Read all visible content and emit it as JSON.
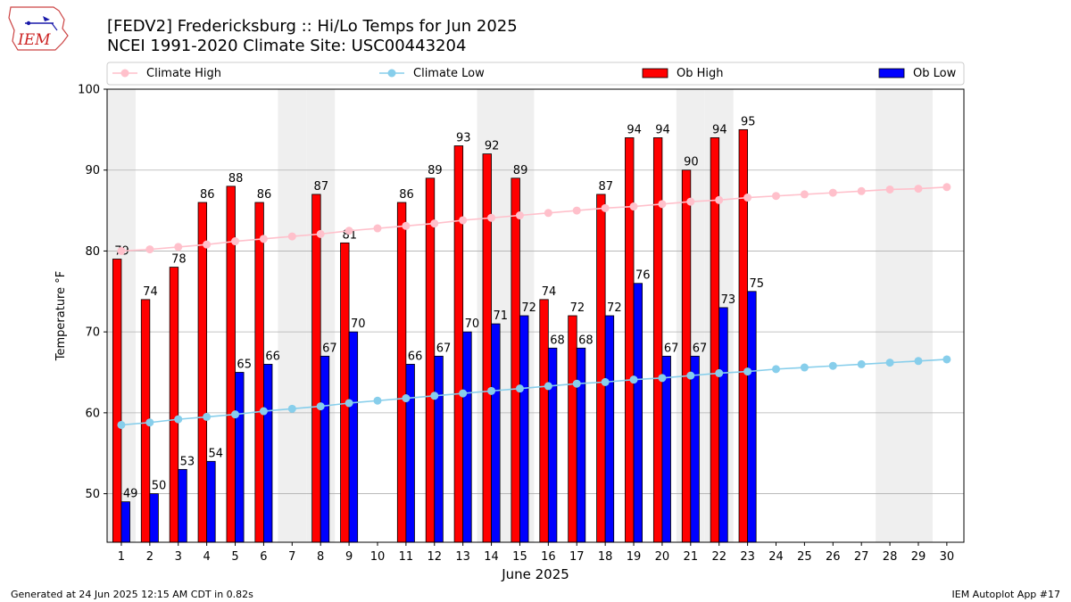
{
  "header": {
    "logo_text": "IEM",
    "title_line1": "[FEDV2] Fredericksburg :: Hi/Lo Temps for Jun 2025",
    "title_line2": "NCEI 1991-2020 Climate Site: USC00443204"
  },
  "footer": {
    "left": "Generated at 24 Jun 2025 12:15 AM CDT in 0.82s",
    "right": "IEM Autoplot App #17"
  },
  "colors": {
    "climate_high": "#ffc0cb",
    "climate_low": "#87ceeb",
    "ob_high": "#ff0000",
    "ob_low": "#0000ff",
    "weekend_band": "#efefef",
    "grid": "#b0b0b0"
  },
  "chart_data": {
    "type": "bar",
    "xlabel": "June 2025",
    "ylabel": "Temperature °F",
    "ylim": [
      44,
      100
    ],
    "yticks": [
      50,
      60,
      70,
      80,
      90,
      100
    ],
    "grid": "horizontal",
    "legend_position": "top",
    "x": [
      1,
      2,
      3,
      4,
      5,
      6,
      7,
      8,
      9,
      10,
      11,
      12,
      13,
      14,
      15,
      16,
      17,
      18,
      19,
      20,
      21,
      22,
      23,
      24,
      25,
      26,
      27,
      28,
      29,
      30
    ],
    "shaded_days": [
      1,
      7,
      8,
      14,
      15,
      21,
      22,
      28,
      29
    ],
    "legend": [
      "Climate High",
      "Climate Low",
      "Ob High",
      "Ob Low"
    ],
    "series": [
      {
        "name": "Climate High",
        "kind": "line",
        "values": [
          80.0,
          80.2,
          80.5,
          80.8,
          81.2,
          81.5,
          81.8,
          82.1,
          82.5,
          82.8,
          83.1,
          83.4,
          83.8,
          84.1,
          84.4,
          84.7,
          85.0,
          85.3,
          85.5,
          85.8,
          86.1,
          86.3,
          86.6,
          86.8,
          87.0,
          87.2,
          87.4,
          87.6,
          87.7,
          87.9
        ]
      },
      {
        "name": "Climate Low",
        "kind": "line",
        "values": [
          58.5,
          58.8,
          59.2,
          59.5,
          59.8,
          60.2,
          60.5,
          60.8,
          61.2,
          61.5,
          61.8,
          62.1,
          62.4,
          62.7,
          63.0,
          63.3,
          63.6,
          63.8,
          64.1,
          64.3,
          64.6,
          64.9,
          65.1,
          65.4,
          65.6,
          65.8,
          66.0,
          66.2,
          66.4,
          66.6
        ]
      },
      {
        "name": "Ob High",
        "kind": "bar",
        "values": [
          79,
          74,
          78,
          86,
          88,
          86,
          null,
          87,
          81,
          null,
          86,
          89,
          93,
          92,
          89,
          74,
          72,
          87,
          94,
          94,
          90,
          94,
          95,
          null,
          null,
          null,
          null,
          null,
          null,
          null
        ]
      },
      {
        "name": "Ob Low",
        "kind": "bar",
        "values": [
          49,
          50,
          53,
          54,
          65,
          66,
          null,
          67,
          70,
          null,
          66,
          67,
          70,
          71,
          72,
          68,
          68,
          72,
          76,
          67,
          67,
          73,
          75,
          null,
          null,
          null,
          null,
          null,
          null,
          null
        ]
      }
    ]
  }
}
